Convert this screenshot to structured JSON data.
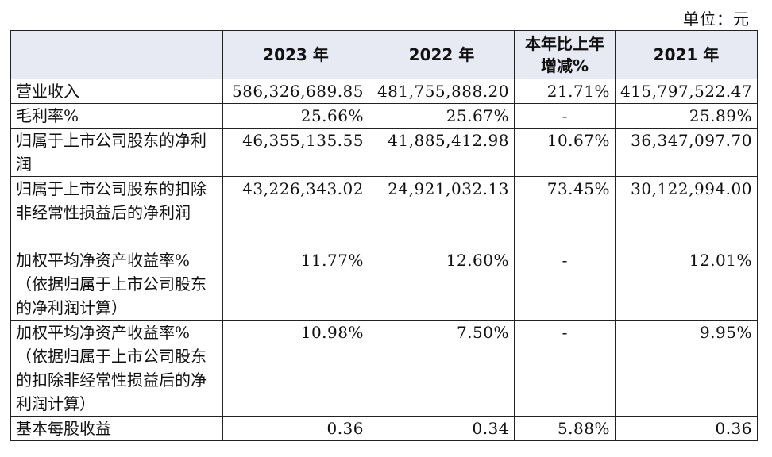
{
  "unit_label": "单位：元",
  "table": {
    "headers": [
      "",
      "2023 年",
      "2022 年",
      "本年比上年增减%",
      "2021 年"
    ],
    "rows": [
      {
        "label": "营业收入",
        "v2023": "586,326,689.85",
        "v2022": "481,755,888.20",
        "change": "21.71%",
        "v2021": "415,797,522.47"
      },
      {
        "label": "毛利率%",
        "v2023": "25.66%",
        "v2022": "25.67%",
        "change": "-",
        "v2021": "25.89%"
      },
      {
        "label": "归属于上市公司股东的净利润",
        "v2023": "46,355,135.55",
        "v2022": "41,885,412.98",
        "change": "10.67%",
        "v2021": "36,347,097.70"
      },
      {
        "label": "归属于上市公司股东的扣除非经常性损益后的净利润",
        "v2023": "43,226,343.02",
        "v2022": "24,921,032.13",
        "change": "73.45%",
        "v2021": "30,122,994.00"
      },
      {
        "label": "加权平均净资产收益率%（依据归属于上市公司股东的净利润计算）",
        "v2023": "11.77%",
        "v2022": "12.60%",
        "change": "-",
        "v2021": "12.01%"
      },
      {
        "label": "加权平均净资产收益率%（依据归属于上市公司股东的扣除非经常性损益后的净利润计算）",
        "v2023": "10.98%",
        "v2022": "7.50%",
        "change": "-",
        "v2021": "9.95%"
      },
      {
        "label": "基本每股收益",
        "v2023": "0.36",
        "v2022": "0.34",
        "change": "5.88%",
        "v2021": "0.36"
      }
    ]
  }
}
